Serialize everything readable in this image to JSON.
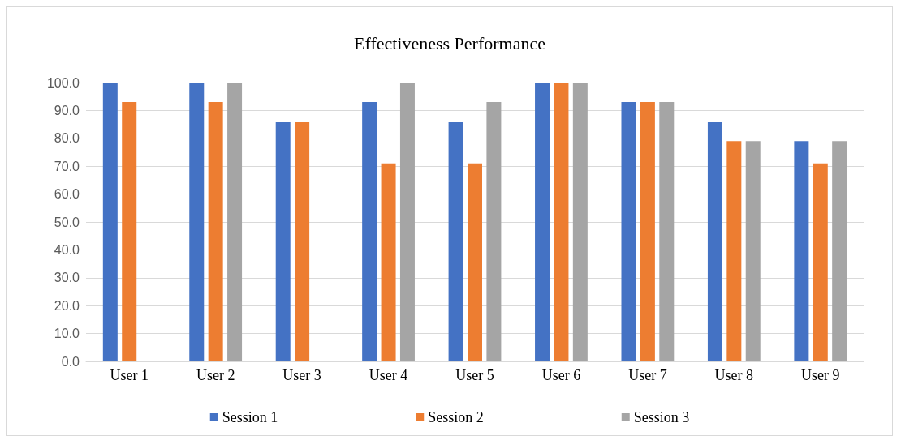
{
  "chart_data": {
    "type": "bar",
    "title": "Effectiveness Performance",
    "categories": [
      "User 1",
      "User 2",
      "User 3",
      "User 4",
      "User 5",
      "User 6",
      "User 7",
      "User 8",
      "User 9"
    ],
    "series": [
      {
        "name": "Session 1",
        "color": "#4472c4",
        "values": [
          100,
          100,
          86,
          93,
          86,
          100,
          93,
          86,
          79
        ]
      },
      {
        "name": "Session 2",
        "color": "#ed7d31",
        "values": [
          93,
          93,
          86,
          71,
          71,
          100,
          93,
          79,
          71
        ]
      },
      {
        "name": "Session 3",
        "color": "#a5a5a5",
        "values": [
          null,
          100,
          null,
          100,
          93,
          100,
          93,
          79,
          79
        ]
      }
    ],
    "ylim": [
      0,
      100
    ],
    "yticks": [
      {
        "value": 0,
        "label": "0.0"
      },
      {
        "value": 10,
        "label": "10.0"
      },
      {
        "value": 20,
        "label": "20.0"
      },
      {
        "value": 30,
        "label": "30.0"
      },
      {
        "value": 40,
        "label": "40.0"
      },
      {
        "value": 50,
        "label": "50.0"
      },
      {
        "value": 60,
        "label": "60.0"
      },
      {
        "value": 70,
        "label": "70.0"
      },
      {
        "value": 80,
        "label": "80.0"
      },
      {
        "value": 90,
        "label": "90.0"
      },
      {
        "value": 100,
        "label": "100.0"
      }
    ],
    "grid": "y",
    "legend": "bottom"
  }
}
